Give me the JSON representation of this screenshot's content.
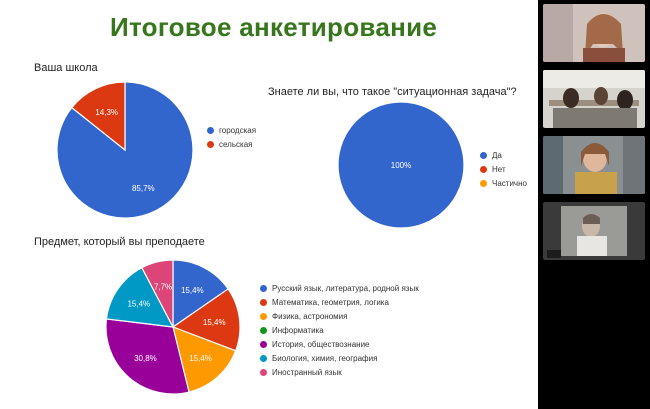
{
  "slide": {
    "title": "Итоговое анкетирование"
  },
  "chart_data": [
    {
      "type": "pie",
      "title": "Ваша школа",
      "labels": [
        "городская",
        "сельская"
      ],
      "values": [
        85.7,
        14.3
      ],
      "value_labels": [
        "85,7%",
        "14,3%"
      ],
      "colors": [
        "#3366cc",
        "#dc3912"
      ],
      "legend": "right"
    },
    {
      "type": "pie",
      "title": "Знаете ли вы, что такое \"ситуационная задача\"?",
      "labels": [
        "Да",
        "Нет",
        "Частично"
      ],
      "values": [
        100,
        0,
        0
      ],
      "value_labels": [
        "100%",
        "",
        ""
      ],
      "colors": [
        "#3366cc",
        "#dc3912",
        "#ff9900"
      ],
      "legend": "right"
    },
    {
      "type": "pie",
      "title": "Предмет, который вы преподаете",
      "labels": [
        "Русский язык, литература, родной язык",
        "Математика, геометрия, логика",
        "Физика, астрономия",
        "Информатика",
        "История, обществознание",
        "Биология, химия, география",
        "Иностранный язык"
      ],
      "values": [
        15.4,
        15.4,
        15.4,
        0,
        30.8,
        15.4,
        7.7
      ],
      "value_labels": [
        "15,4%",
        "15,4%",
        "15,4%",
        "",
        "30,8%",
        "15,4%",
        "7,7%"
      ],
      "colors": [
        "#3366cc",
        "#dc3912",
        "#ff9900",
        "#109618",
        "#990099",
        "#0099c6",
        "#dd4477"
      ],
      "legend": "right"
    }
  ],
  "video_tiles": [
    {
      "name": "participant-1"
    },
    {
      "name": "participant-2"
    },
    {
      "name": "participant-3"
    },
    {
      "name": "participant-4"
    }
  ]
}
